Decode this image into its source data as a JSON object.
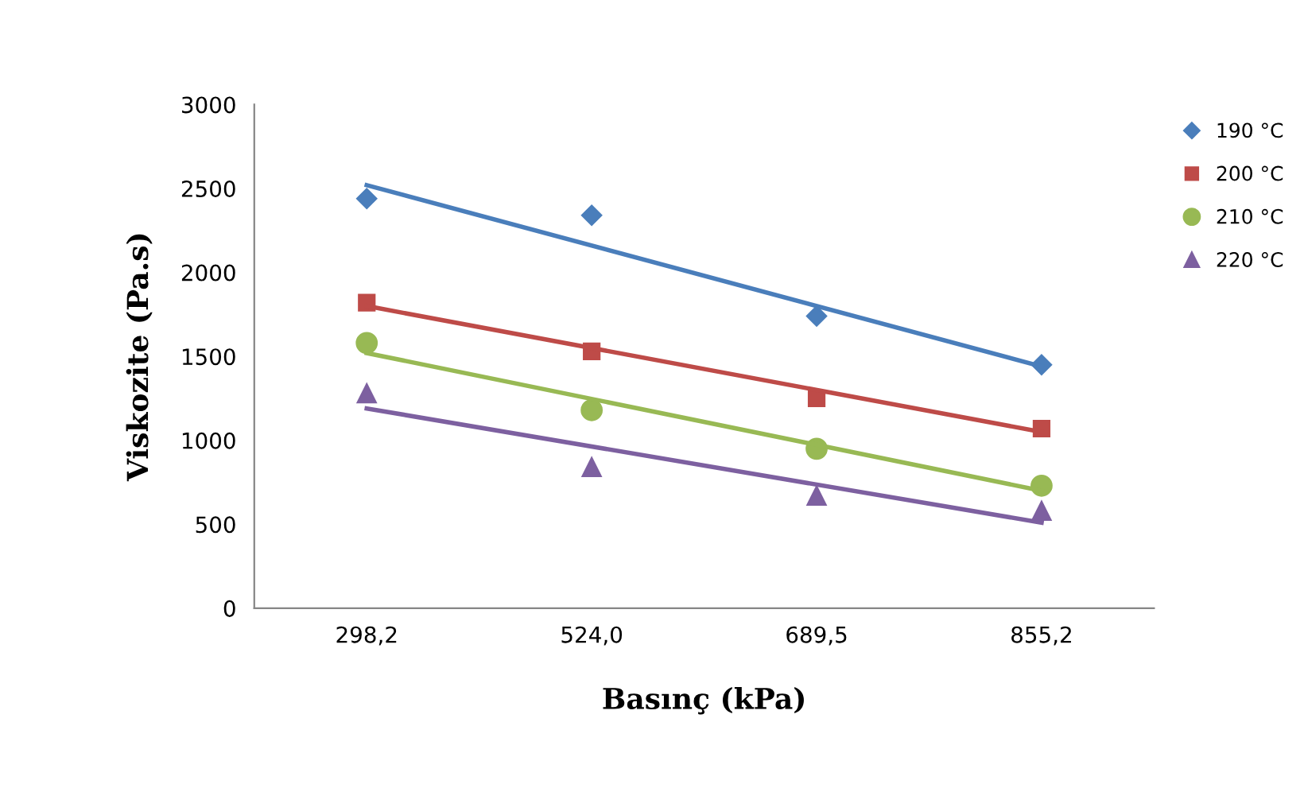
{
  "chart_data": {
    "type": "scatter",
    "xlabel": "Basınç (kPa)",
    "ylabel": "Viskozite (Pa.s)",
    "categories": [
      "298,2",
      "524,0",
      "689,5",
      "855,2"
    ],
    "ylim": [
      0,
      3000
    ],
    "yticks": [
      0,
      500,
      1000,
      1500,
      2000,
      2500,
      3000
    ],
    "grid": false,
    "legend": "top right",
    "series": [
      {
        "name": "190 °C",
        "color": "#4a7ebb",
        "marker": "diamond",
        "values": [
          2440,
          2340,
          1740,
          1450
        ]
      },
      {
        "name": "200 °C",
        "color": "#be4b48",
        "marker": "square",
        "values": [
          1820,
          1530,
          1250,
          1070
        ]
      },
      {
        "name": "210 °C",
        "color": "#98b954",
        "marker": "circle",
        "values": [
          1580,
          1180,
          950,
          730
        ]
      },
      {
        "name": "220 °C",
        "color": "#7d60a0",
        "marker": "triangle",
        "values": [
          1280,
          840,
          670,
          580
        ]
      },
      {
        "type": "line",
        "color": "#4a7ebb",
        "marker": "none",
        "x": [
          "298,2",
          "855,2"
        ],
        "values": [
          2520,
          1440
        ]
      },
      {
        "type": "line",
        "color": "#be4b48",
        "marker": "none",
        "x": [
          "298,2",
          "855,2"
        ],
        "values": [
          1800,
          1050
        ]
      },
      {
        "type": "line",
        "color": "#98b954",
        "marker": "none",
        "x": [
          "298,2",
          "855,2"
        ],
        "values": [
          1520,
          700
        ]
      },
      {
        "type": "line",
        "color": "#7d60a0",
        "marker": "none",
        "x": [
          "298,2",
          "855,2"
        ],
        "values": [
          1190,
          510
        ]
      }
    ]
  }
}
